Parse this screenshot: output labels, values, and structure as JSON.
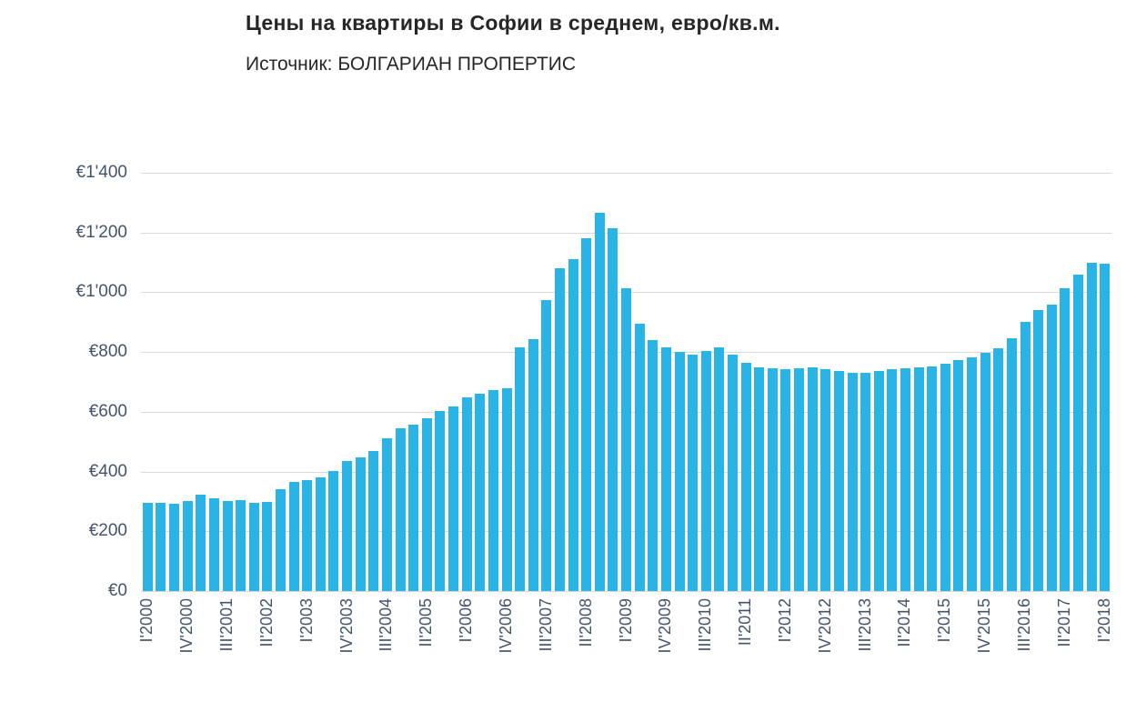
{
  "header": {
    "title": "Цены на квартиры в Софии в среднем, евро/кв.м.",
    "subtitle": "Источник: БОЛГАРИАН ПРОПЕРТИС"
  },
  "chart_data": {
    "type": "bar",
    "title": "Цены на квартиры в Софии в среднем, евро/кв.м.",
    "subtitle": "Источник: БОЛГАРИАН ПРОПЕРТИС",
    "unit": "евро/кв.м.",
    "xlabel": "",
    "ylabel": "",
    "ylim": [
      0,
      1400
    ],
    "y_tick_step": 200,
    "y_tick_labels": [
      "€0",
      "€200",
      "€400",
      "€600",
      "€800",
      "€1'000",
      "€1'200",
      "€1'400"
    ],
    "x_tick_interval": 3,
    "x_tick_labels_visible": [
      "I'2000",
      "IV'2000",
      "III'2001",
      "II'2002",
      "I'2003",
      "IV'2003",
      "III'2004",
      "II'2005",
      "I'2006",
      "IV'2006",
      "III'2007",
      "II'2008",
      "I'2009",
      "IV'2009",
      "III'2010",
      "II'2011",
      "I'2012",
      "IV'2012",
      "III'2013",
      "II'2014",
      "I'2015",
      "IV'2015",
      "III'2016",
      "II'2017",
      "I'2018"
    ],
    "categories": [
      "I'2000",
      "II'2000",
      "III'2000",
      "IV'2000",
      "I'2001",
      "II'2001",
      "III'2001",
      "IV'2001",
      "I'2002",
      "II'2002",
      "III'2002",
      "IV'2002",
      "I'2003",
      "II'2003",
      "III'2003",
      "IV'2003",
      "I'2004",
      "II'2004",
      "III'2004",
      "IV'2004",
      "I'2005",
      "II'2005",
      "III'2005",
      "IV'2005",
      "I'2006",
      "II'2006",
      "III'2006",
      "IV'2006",
      "I'2007",
      "II'2007",
      "III'2007",
      "IV'2007",
      "I'2008",
      "II'2008",
      "III'2008",
      "IV'2008",
      "I'2009",
      "II'2009",
      "III'2009",
      "IV'2009",
      "I'2010",
      "II'2010",
      "III'2010",
      "IV'2010",
      "I'2011",
      "II'2011",
      "III'2011",
      "IV'2011",
      "I'2012",
      "II'2012",
      "III'2012",
      "IV'2012",
      "I'2013",
      "II'2013",
      "III'2013",
      "IV'2013",
      "I'2014",
      "II'2014",
      "III'2014",
      "IV'2014",
      "I'2015",
      "II'2015",
      "III'2015",
      "IV'2015",
      "I'2016",
      "II'2016",
      "III'2016",
      "IV'2016",
      "I'2017",
      "II'2017",
      "III'2017",
      "IV'2017",
      "I'2018"
    ],
    "values": [
      296,
      294,
      292,
      302,
      322,
      312,
      302,
      306,
      296,
      298,
      342,
      366,
      372,
      380,
      402,
      436,
      447,
      470,
      512,
      546,
      558,
      578,
      602,
      618,
      648,
      662,
      672,
      680,
      815,
      842,
      975,
      1080,
      1110,
      1180,
      1265,
      1215,
      1015,
      895,
      840,
      815,
      800,
      790,
      805,
      815,
      790,
      765,
      750,
      745,
      742,
      746,
      748,
      744,
      738,
      732,
      730,
      736,
      742,
      745,
      748,
      752,
      762,
      772,
      782,
      798,
      812,
      845,
      900,
      940,
      960,
      1015,
      1060,
      1098,
      1095
    ],
    "bar_color": "#2ab4e6",
    "grid_color": "#d9d9d9",
    "tick_label_color": "#44546a",
    "legend": "none",
    "grid": "horizontal"
  }
}
